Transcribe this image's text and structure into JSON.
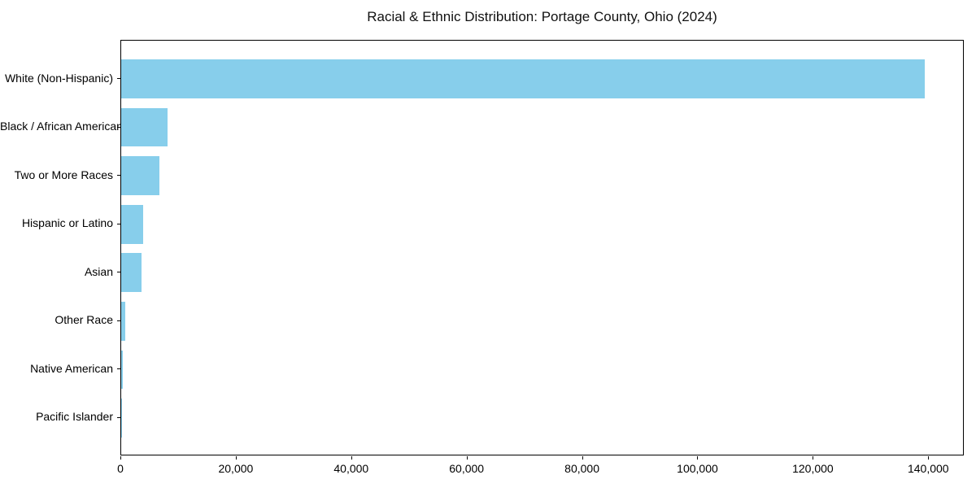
{
  "chart_data": {
    "type": "bar",
    "orientation": "horizontal",
    "title": "Racial & Ethnic Distribution: Portage County, Ohio (2024)",
    "categories": [
      "White (Non-Hispanic)",
      "Black / African American",
      "Two or More Races",
      "Hispanic or Latino",
      "Asian",
      "Other Race",
      "Native American",
      "Pacific Islander"
    ],
    "values": [
      139200,
      8100,
      6600,
      3800,
      3500,
      750,
      230,
      40
    ],
    "bar_color": "#87CEEB",
    "axis_color": "#000000",
    "text_color": "#000000",
    "xlabel": "",
    "ylabel": "",
    "xlim": [
      0,
      146160
    ],
    "x_ticks": [
      0,
      20000,
      40000,
      60000,
      80000,
      100000,
      120000,
      140000
    ],
    "x_tick_labels": [
      "0",
      "20,000",
      "40,000",
      "60,000",
      "80,000",
      "100,000",
      "120,000",
      "140,000"
    ],
    "grid": false,
    "legend": "none"
  }
}
